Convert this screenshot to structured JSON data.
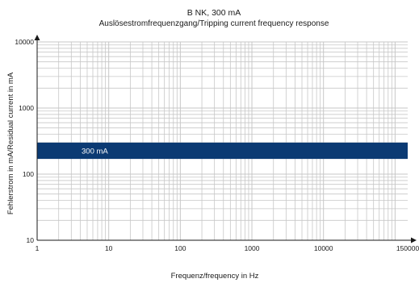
{
  "chart_data": {
    "type": "area",
    "title": "B NK, 300 mA",
    "subtitle": "Auslösestromfrequenzgang/Tripping current frequency response",
    "xlabel": "Frequenz/frequency in Hz",
    "ylabel": "Fehlerstrom in mA/Residual current in mA",
    "x_scale": "log",
    "y_scale": "log",
    "xlim": [
      1,
      150000
    ],
    "ylim": [
      10,
      10000
    ],
    "x_ticks": [
      {
        "value": 1,
        "label": "1"
      },
      {
        "value": 10,
        "label": "10"
      },
      {
        "value": 100,
        "label": "100"
      },
      {
        "value": 1000,
        "label": "1000"
      },
      {
        "value": 10000,
        "label": "10000"
      },
      {
        "value": 150000,
        "label": "150000"
      }
    ],
    "y_ticks": [
      {
        "value": 10,
        "label": "10"
      },
      {
        "value": 100,
        "label": "100"
      },
      {
        "value": 1000,
        "label": "1000"
      },
      {
        "value": 10000,
        "label": "10000"
      }
    ],
    "grid": true,
    "series": [
      {
        "name": "300 mA",
        "x": [
          1,
          150000
        ],
        "y_low": [
          170,
          170
        ],
        "y_high": [
          300,
          300
        ],
        "color": "#0b3a73"
      }
    ],
    "colors": {
      "band": "#0b3a73",
      "band_label": "#ffffff",
      "grid": "#c7c7c7",
      "axis": "#1a1a1a"
    }
  }
}
